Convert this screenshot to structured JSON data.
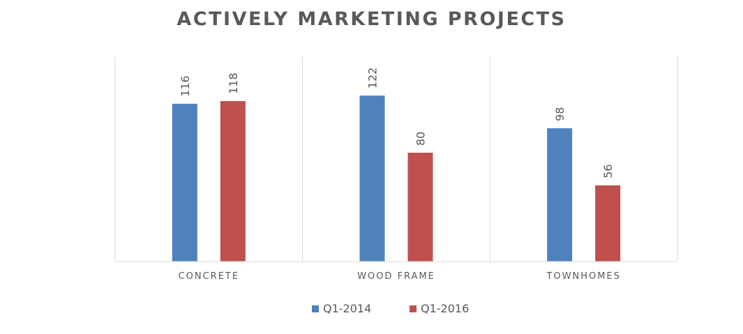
{
  "chart_data": {
    "type": "bar",
    "title": "ACTIVELY MARKETING PROJECTS",
    "categories": [
      "CONCRETE",
      "WOOD FRAME",
      "TOWNHOMES"
    ],
    "series": [
      {
        "name": "Q1-2014",
        "color": "#4f81bd",
        "values": [
          116,
          122,
          98
        ]
      },
      {
        "name": "Q1-2016",
        "color": "#c0504d",
        "values": [
          118,
          80,
          56
        ]
      }
    ],
    "ylim": [
      0,
      140
    ],
    "grid": false,
    "legend_position": "bottom",
    "data_labels": true
  }
}
